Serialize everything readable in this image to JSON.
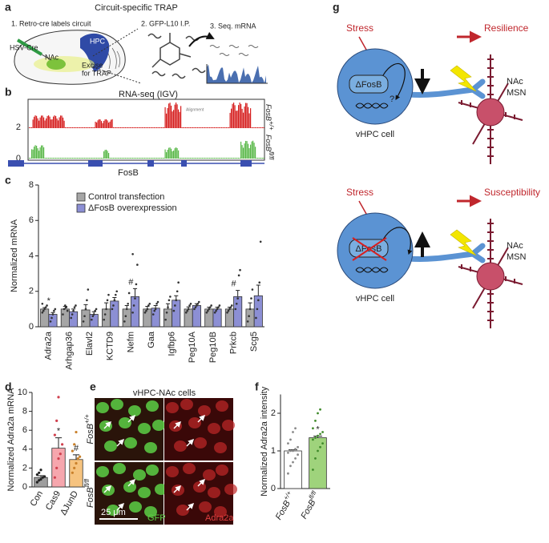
{
  "labels": [
    "a",
    "b",
    "c",
    "d",
    "e",
    "f",
    "g"
  ],
  "panel_a": {
    "title": "Circuit-specific TRAP",
    "step1": "1. Retro-cre labels circuit",
    "step2": "2. GFP-L10 I.P.",
    "step3": "3. Seq. mRNA",
    "hsv": "HSV-Cre",
    "hpc": "HPC",
    "nac": "NAc",
    "excise": [
      "Excise",
      "for TRAP"
    ]
  },
  "panel_b": {
    "title": "RNA-seq (IGV)",
    "alignment": "Alignment",
    "track_ticks": [
      2,
      0
    ],
    "tracks": [
      {
        "gene": "FosB",
        "genotype": "+/+"
      },
      {
        "gene": "FosB",
        "genotype": "fl/fl"
      }
    ],
    "gene_label": "FosB"
  },
  "chart_data": [
    {
      "type": "bar",
      "ylabel": "Normalized mRNA",
      "categories": [
        "Adra2a",
        "Arhgap36",
        "Elavl2",
        "KCTD9",
        "Nefm",
        "Gaa",
        "Igfbp6",
        "Peg10A",
        "Peg10B",
        "Prkcb",
        "Scg5"
      ],
      "ylim": [
        0,
        8
      ],
      "yticks": [
        0,
        2,
        4,
        6,
        8
      ],
      "series": [
        {
          "name": "Control transfection",
          "color": "#a6a6a6",
          "point_color": "#333333",
          "values": [
            1.0,
            1.0,
            0.95,
            1.0,
            1.0,
            1.0,
            1.0,
            1.0,
            1.0,
            1.0,
            1.0
          ],
          "errors": [
            0.08,
            0.15,
            0.3,
            0.35,
            0.2,
            0.15,
            0.3,
            0.12,
            0.1,
            0.1,
            0.35
          ],
          "points": [
            [
              0.8,
              0.9,
              1.0,
              1.1,
              1.2,
              1.3
            ],
            [
              0.7,
              1.0,
              1.2,
              1.1,
              0.9
            ],
            [
              0.3,
              0.6,
              1.0,
              1.5,
              2.1
            ],
            [
              0.4,
              0.7,
              1.0,
              1.5,
              1.8
            ],
            [
              0.3,
              0.6,
              1.0,
              1.3,
              1.9
            ],
            [
              0.8,
              0.9,
              1.0,
              1.2,
              1.3
            ],
            [
              0.4,
              0.8,
              1.1,
              1.5,
              1.7
            ],
            [
              0.8,
              0.9,
              1.0,
              1.2,
              1.3
            ],
            [
              0.8,
              0.9,
              1.0,
              1.1,
              1.2
            ],
            [
              0.8,
              0.9,
              1.0,
              1.1,
              1.2
            ],
            [
              0.3,
              0.6,
              1.0,
              1.6,
              2.1
            ]
          ]
        },
        {
          "name": "ΔFosB overexpression",
          "color": "#8c8fd4",
          "point_color": "#333333",
          "values": [
            0.7,
            0.85,
            0.7,
            1.45,
            1.7,
            1.05,
            1.5,
            1.2,
            1.0,
            1.7,
            1.75
          ],
          "errors": [
            0.1,
            0.15,
            0.15,
            0.2,
            0.45,
            0.15,
            0.25,
            0.1,
            0.1,
            0.35,
            0.6
          ],
          "points": [
            [
              0.3,
              0.5,
              0.7,
              0.9,
              1.0
            ],
            [
              0.5,
              0.7,
              0.9,
              1.1,
              1.2
            ],
            [
              0.4,
              0.6,
              0.7,
              0.9,
              1.0
            ],
            [
              1.0,
              1.2,
              1.5,
              1.8,
              2.0
            ],
            [
              0.8,
              1.2,
              1.6,
              2.4,
              3.5,
              4.1
            ],
            [
              0.7,
              0.9,
              1.0,
              1.3,
              1.4
            ],
            [
              0.9,
              1.2,
              1.5,
              2.0,
              2.5
            ],
            [
              1.0,
              1.1,
              1.2,
              1.3,
              1.4
            ],
            [
              0.8,
              0.9,
              1.0,
              1.1,
              1.2
            ],
            [
              1.0,
              1.3,
              1.6,
              2.9,
              3.2
            ],
            [
              0.5,
              1.0,
              1.5,
              2.5,
              4.8
            ]
          ]
        }
      ],
      "annotations": [
        "*",
        null,
        null,
        null,
        "#",
        null,
        null,
        null,
        null,
        "#",
        null
      ]
    },
    {
      "type": "bar",
      "ylabel": "Normalized Adra2a mRNA",
      "categories": [
        "Con",
        "Cas9",
        "ΔJunD"
      ],
      "ylim": [
        0,
        10
      ],
      "yticks": [
        0,
        2,
        4,
        6,
        8,
        10
      ],
      "series": [
        {
          "colors": [
            "#9e9e9e",
            "#f6a6ad",
            "#f6c37f"
          ],
          "point_colors": [
            "#222222",
            "#d0404e",
            "#c9802a"
          ],
          "values": [
            1.0,
            4.1,
            2.9
          ],
          "errors": [
            0.2,
            1.1,
            0.5
          ],
          "points": [
            [
              0.5,
              0.7,
              0.8,
              1.0,
              1.1,
              1.3,
              1.5,
              1.8
            ],
            [
              1.0,
              2.0,
              3.0,
              3.5,
              4.5,
              5.5,
              7.0,
              9.5
            ],
            [
              1.5,
              2.0,
              2.5,
              3.0,
              3.2,
              3.8,
              4.5,
              5.8
            ]
          ]
        }
      ],
      "annotations": [
        null,
        "*",
        "#"
      ]
    },
    {
      "type": "bar",
      "ylabel": "Normalized Adra2a intensity",
      "categories": [
        "FosB",
        "FosB"
      ],
      "category_superscripts": [
        "+/+",
        "fl/fl"
      ],
      "ylim": [
        0,
        2.5
      ],
      "yticks": [
        0,
        1,
        2
      ],
      "series": [
        {
          "colors": [
            "#ffffff",
            "#9fd37c"
          ],
          "point_colors": [
            "#888888",
            "#3f8a2a"
          ],
          "values": [
            1.0,
            1.35
          ],
          "errors": [
            0.03,
            0.04
          ],
          "points": [
            [
              0.4,
              0.6,
              0.7,
              0.8,
              0.9,
              0.95,
              1.0,
              1.0,
              1.05,
              1.1,
              1.2,
              1.3,
              1.5,
              1.6
            ],
            [
              0.5,
              0.8,
              1.0,
              1.1,
              1.2,
              1.3,
              1.35,
              1.4,
              1.45,
              1.5,
              1.6,
              1.8,
              2.0,
              2.1
            ]
          ]
        }
      ],
      "annotations": [
        null,
        "*"
      ]
    }
  ],
  "panel_e": {
    "title": "vHPC-NAc cells",
    "rows": [
      {
        "gene": "FosB",
        "genotype": "+/+"
      },
      {
        "gene": "FosB",
        "genotype": "fl/fl"
      }
    ],
    "scale": "25 μm",
    "green": "GFP",
    "red": "Adra2a"
  },
  "panel_g": {
    "upper": {
      "stress": "Stress",
      "outcome": "Resilience",
      "protein": "ΔFosB",
      "question": "?",
      "target": [
        "NAc",
        "MSN"
      ],
      "cell": "vHPC cell"
    },
    "lower": {
      "stress": "Stress",
      "outcome": "Susceptibility",
      "protein": "ΔFosB",
      "target": [
        "NAc",
        "MSN"
      ],
      "cell": "vHPC cell"
    }
  }
}
